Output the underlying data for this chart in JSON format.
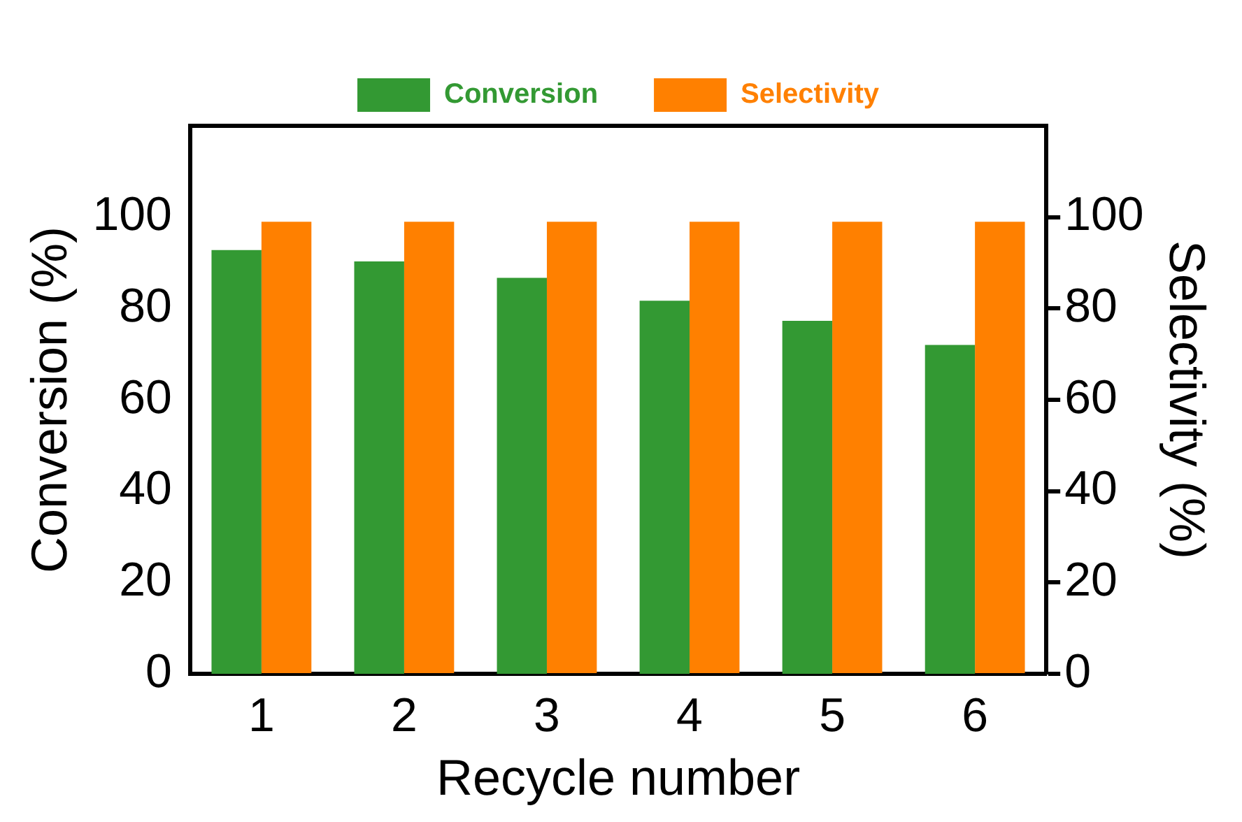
{
  "chart_data": {
    "type": "bar",
    "xlabel": "Recycle number",
    "ylabel": "Conversion (%)",
    "y2label": "Selectivity (%)",
    "categories": [
      "1",
      "2",
      "3",
      "4",
      "5",
      "6"
    ],
    "series": [
      {
        "name": "Conversion",
        "color": "#339933",
        "values": [
          92.8,
          90.3,
          86.7,
          81.7,
          77.3,
          72.0
        ]
      },
      {
        "name": "Selectivity",
        "color": "#ff8000",
        "axis": "y2",
        "values": [
          99,
          99,
          99,
          99,
          99,
          99
        ]
      }
    ],
    "ylim": [
      0,
      120
    ],
    "yticks": [
      0,
      20,
      40,
      60,
      80,
      100
    ],
    "y2lim": [
      0,
      120
    ],
    "y2ticks": [
      0,
      20,
      40,
      60,
      80,
      100
    ],
    "grid": false,
    "legend": "top"
  }
}
